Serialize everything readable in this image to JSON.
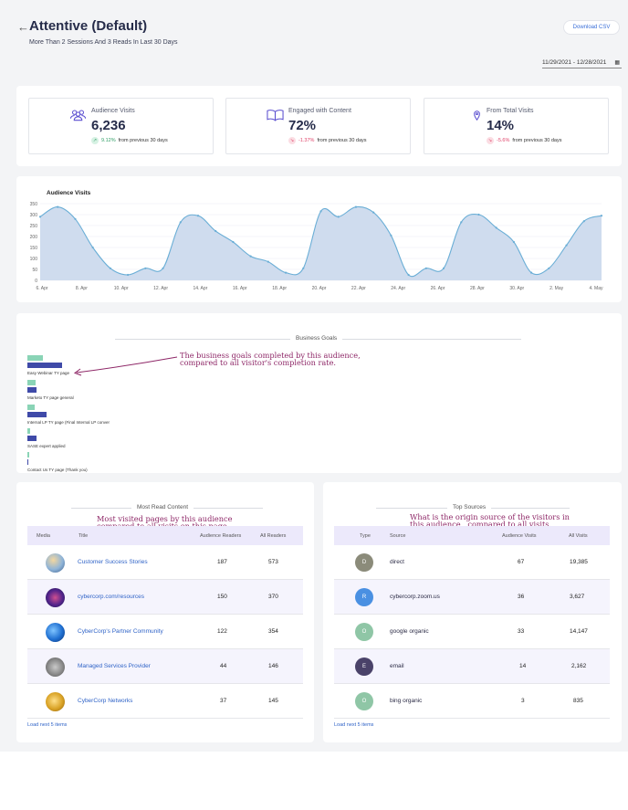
{
  "header": {
    "title": "Attentive (Default)",
    "subtitle": "More Than 2 Sessions And 3 Reads In Last 30 Days",
    "download_label": "Download CSV",
    "date_range": "11/29/2021 - 12/28/2021"
  },
  "kpis": [
    {
      "label": "Audience Visits",
      "value": "6,236",
      "change": "9.12%",
      "change_text": "from previous 30 days",
      "direction": "up",
      "icon": "users-icon"
    },
    {
      "label": "Engaged with Content",
      "value": "72%",
      "change": "-1.37%",
      "change_text": "from previous 30 days",
      "direction": "down",
      "icon": "open-book-icon"
    },
    {
      "label": "From Total Visits",
      "value": "14%",
      "change": "-5.6%",
      "change_text": "from previous 30 days",
      "direction": "down",
      "icon": "location-pin-icon"
    }
  ],
  "chart_data": {
    "type": "area",
    "title": "Audience Visits",
    "y_ticks": [
      "350",
      "300",
      "250",
      "200",
      "150",
      "100",
      "50",
      "0"
    ],
    "ylim": [
      0,
      350
    ],
    "x_ticks": [
      "6. Apr",
      "8. Apr",
      "10. Apr",
      "12. Apr",
      "14. Apr",
      "16. Apr",
      "18. Apr",
      "20. Apr",
      "22. Apr",
      "24. Apr",
      "26. Apr",
      "28. Apr",
      "30. Apr",
      "2. May",
      "4. May"
    ],
    "values": [
      290,
      335,
      280,
      150,
      55,
      25,
      55,
      55,
      265,
      295,
      225,
      175,
      110,
      85,
      35,
      55,
      315,
      290,
      335,
      310,
      205,
      25,
      55,
      55,
      265,
      300,
      240,
      175,
      35,
      55,
      160,
      270,
      295
    ],
    "color": "#6aaed6",
    "fill": "#cfdcee"
  },
  "business_goals": {
    "title": "Business Goals",
    "items": [
      {
        "label": "Easy Webinar TY page",
        "audience": 0.46,
        "all": 1.0
      },
      {
        "label": "Marketo TY page general",
        "audience": 0.24,
        "all": 0.27
      },
      {
        "label": "Internal LP TY page (Final Internal LP conver",
        "audience": 0.2,
        "all": 0.54
      },
      {
        "label": "SASE expert applied",
        "audience": 0.09,
        "all": 0.27
      },
      {
        "label": "Contact Us TY page (Thank you)",
        "audience": 0.06,
        "all": 0.03
      }
    ],
    "annotation": "The business goals completed by this audience, compared to all visitor's completion rate."
  },
  "most_read": {
    "title": "Most Read Content",
    "annotation": "Most visited pages by this audience compared to all visits on this page",
    "columns": [
      "Media",
      "Title",
      "Audience Readers",
      "All Readers"
    ],
    "rows": [
      {
        "title": "Customer Success Stories",
        "audience": "187",
        "all": "573",
        "thumb": "city-skyline-thumbnail"
      },
      {
        "title": "cybercorp.com/resources",
        "audience": "150",
        "all": "370",
        "thumb": "purple-network-thumbnail"
      },
      {
        "title": "CyberCorp's Partner Community",
        "audience": "122",
        "all": "354",
        "thumb": "globe-thumbnail"
      },
      {
        "title": "Managed Services Provider",
        "audience": "44",
        "all": "146",
        "thumb": "gray-texture-thumbnail"
      },
      {
        "title": "CyberCorp Networks",
        "audience": "37",
        "all": "145",
        "thumb": "gold-medal-thumbnail"
      }
    ],
    "load_more": "Load next 5 items"
  },
  "top_sources": {
    "title": "Top Sources",
    "annotation": "What is the origin source of the visitors in this audience , compared to all visits.",
    "columns": [
      "Type",
      "Source",
      "Audience Visits",
      "All Visits"
    ],
    "rows": [
      {
        "letter": "D",
        "source": "direct",
        "audience": "67",
        "all": "19,385",
        "color": "#8b8b7a"
      },
      {
        "letter": "R",
        "source": "cybercorp.zoom.us",
        "audience": "36",
        "all": "3,627",
        "color": "#4a90e2"
      },
      {
        "letter": "O",
        "source": "google organic",
        "audience": "33",
        "all": "14,147",
        "color": "#8fc6a6"
      },
      {
        "letter": "E",
        "source": "email",
        "audience": "14",
        "all": "2,162",
        "color": "#4a4269"
      },
      {
        "letter": "O",
        "source": "bing organic",
        "audience": "3",
        "all": "835",
        "color": "#8fc6a6"
      }
    ],
    "load_more": "Load next 5 items"
  }
}
